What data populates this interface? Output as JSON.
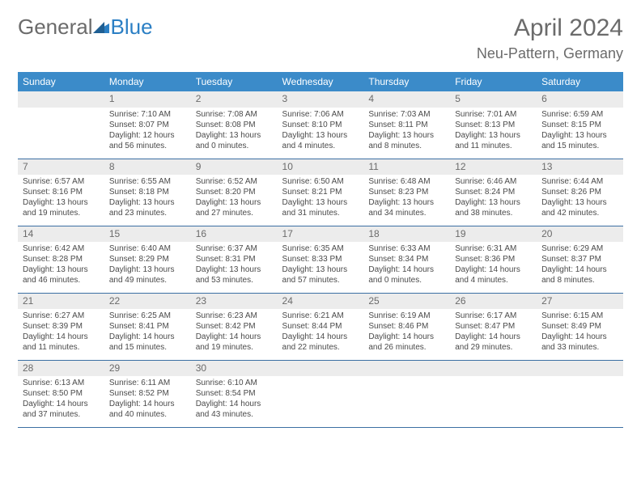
{
  "brand": {
    "text1": "General",
    "text2": "Blue",
    "accent": "#2b7fc4",
    "gray": "#6b6b6b"
  },
  "header": {
    "month": "April 2024",
    "location": "Neu-Pattern, Germany"
  },
  "style": {
    "header_bg": "#3b8bc9",
    "header_fg": "#ffffff",
    "daynum_bg": "#ececec",
    "border_color": "#3b6fa3",
    "body_text": "#4a4a4a",
    "font_family": "Arial",
    "cell_fontsize": 10,
    "header_fontsize": 12,
    "title_fontsize": 30
  },
  "weekdays": [
    "Sunday",
    "Monday",
    "Tuesday",
    "Wednesday",
    "Thursday",
    "Friday",
    "Saturday"
  ],
  "weeks": [
    [
      null,
      {
        "n": "1",
        "sr": "Sunrise: 7:10 AM",
        "ss": "Sunset: 8:07 PM",
        "d1": "Daylight: 12 hours",
        "d2": "and 56 minutes."
      },
      {
        "n": "2",
        "sr": "Sunrise: 7:08 AM",
        "ss": "Sunset: 8:08 PM",
        "d1": "Daylight: 13 hours",
        "d2": "and 0 minutes."
      },
      {
        "n": "3",
        "sr": "Sunrise: 7:06 AM",
        "ss": "Sunset: 8:10 PM",
        "d1": "Daylight: 13 hours",
        "d2": "and 4 minutes."
      },
      {
        "n": "4",
        "sr": "Sunrise: 7:03 AM",
        "ss": "Sunset: 8:11 PM",
        "d1": "Daylight: 13 hours",
        "d2": "and 8 minutes."
      },
      {
        "n": "5",
        "sr": "Sunrise: 7:01 AM",
        "ss": "Sunset: 8:13 PM",
        "d1": "Daylight: 13 hours",
        "d2": "and 11 minutes."
      },
      {
        "n": "6",
        "sr": "Sunrise: 6:59 AM",
        "ss": "Sunset: 8:15 PM",
        "d1": "Daylight: 13 hours",
        "d2": "and 15 minutes."
      }
    ],
    [
      {
        "n": "7",
        "sr": "Sunrise: 6:57 AM",
        "ss": "Sunset: 8:16 PM",
        "d1": "Daylight: 13 hours",
        "d2": "and 19 minutes."
      },
      {
        "n": "8",
        "sr": "Sunrise: 6:55 AM",
        "ss": "Sunset: 8:18 PM",
        "d1": "Daylight: 13 hours",
        "d2": "and 23 minutes."
      },
      {
        "n": "9",
        "sr": "Sunrise: 6:52 AM",
        "ss": "Sunset: 8:20 PM",
        "d1": "Daylight: 13 hours",
        "d2": "and 27 minutes."
      },
      {
        "n": "10",
        "sr": "Sunrise: 6:50 AM",
        "ss": "Sunset: 8:21 PM",
        "d1": "Daylight: 13 hours",
        "d2": "and 31 minutes."
      },
      {
        "n": "11",
        "sr": "Sunrise: 6:48 AM",
        "ss": "Sunset: 8:23 PM",
        "d1": "Daylight: 13 hours",
        "d2": "and 34 minutes."
      },
      {
        "n": "12",
        "sr": "Sunrise: 6:46 AM",
        "ss": "Sunset: 8:24 PM",
        "d1": "Daylight: 13 hours",
        "d2": "and 38 minutes."
      },
      {
        "n": "13",
        "sr": "Sunrise: 6:44 AM",
        "ss": "Sunset: 8:26 PM",
        "d1": "Daylight: 13 hours",
        "d2": "and 42 minutes."
      }
    ],
    [
      {
        "n": "14",
        "sr": "Sunrise: 6:42 AM",
        "ss": "Sunset: 8:28 PM",
        "d1": "Daylight: 13 hours",
        "d2": "and 46 minutes."
      },
      {
        "n": "15",
        "sr": "Sunrise: 6:40 AM",
        "ss": "Sunset: 8:29 PM",
        "d1": "Daylight: 13 hours",
        "d2": "and 49 minutes."
      },
      {
        "n": "16",
        "sr": "Sunrise: 6:37 AM",
        "ss": "Sunset: 8:31 PM",
        "d1": "Daylight: 13 hours",
        "d2": "and 53 minutes."
      },
      {
        "n": "17",
        "sr": "Sunrise: 6:35 AM",
        "ss": "Sunset: 8:33 PM",
        "d1": "Daylight: 13 hours",
        "d2": "and 57 minutes."
      },
      {
        "n": "18",
        "sr": "Sunrise: 6:33 AM",
        "ss": "Sunset: 8:34 PM",
        "d1": "Daylight: 14 hours",
        "d2": "and 0 minutes."
      },
      {
        "n": "19",
        "sr": "Sunrise: 6:31 AM",
        "ss": "Sunset: 8:36 PM",
        "d1": "Daylight: 14 hours",
        "d2": "and 4 minutes."
      },
      {
        "n": "20",
        "sr": "Sunrise: 6:29 AM",
        "ss": "Sunset: 8:37 PM",
        "d1": "Daylight: 14 hours",
        "d2": "and 8 minutes."
      }
    ],
    [
      {
        "n": "21",
        "sr": "Sunrise: 6:27 AM",
        "ss": "Sunset: 8:39 PM",
        "d1": "Daylight: 14 hours",
        "d2": "and 11 minutes."
      },
      {
        "n": "22",
        "sr": "Sunrise: 6:25 AM",
        "ss": "Sunset: 8:41 PM",
        "d1": "Daylight: 14 hours",
        "d2": "and 15 minutes."
      },
      {
        "n": "23",
        "sr": "Sunrise: 6:23 AM",
        "ss": "Sunset: 8:42 PM",
        "d1": "Daylight: 14 hours",
        "d2": "and 19 minutes."
      },
      {
        "n": "24",
        "sr": "Sunrise: 6:21 AM",
        "ss": "Sunset: 8:44 PM",
        "d1": "Daylight: 14 hours",
        "d2": "and 22 minutes."
      },
      {
        "n": "25",
        "sr": "Sunrise: 6:19 AM",
        "ss": "Sunset: 8:46 PM",
        "d1": "Daylight: 14 hours",
        "d2": "and 26 minutes."
      },
      {
        "n": "26",
        "sr": "Sunrise: 6:17 AM",
        "ss": "Sunset: 8:47 PM",
        "d1": "Daylight: 14 hours",
        "d2": "and 29 minutes."
      },
      {
        "n": "27",
        "sr": "Sunrise: 6:15 AM",
        "ss": "Sunset: 8:49 PM",
        "d1": "Daylight: 14 hours",
        "d2": "and 33 minutes."
      }
    ],
    [
      {
        "n": "28",
        "sr": "Sunrise: 6:13 AM",
        "ss": "Sunset: 8:50 PM",
        "d1": "Daylight: 14 hours",
        "d2": "and 37 minutes."
      },
      {
        "n": "29",
        "sr": "Sunrise: 6:11 AM",
        "ss": "Sunset: 8:52 PM",
        "d1": "Daylight: 14 hours",
        "d2": "and 40 minutes."
      },
      {
        "n": "30",
        "sr": "Sunrise: 6:10 AM",
        "ss": "Sunset: 8:54 PM",
        "d1": "Daylight: 14 hours",
        "d2": "and 43 minutes."
      },
      null,
      null,
      null,
      null
    ]
  ]
}
